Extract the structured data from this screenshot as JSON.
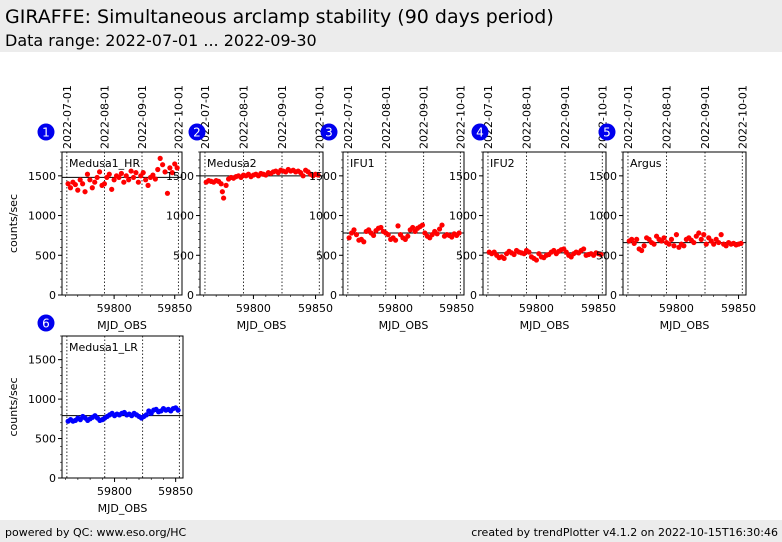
{
  "header": {
    "title": "GIRAFFE: Simultaneous arclamp stability (90 days period)",
    "subtitle": "Data range: 2022-07-01 ... 2022-09-30"
  },
  "footer": {
    "left": "powered by QC: www.eso.org/HC",
    "right": "created by trendPlotter v4.1.2 on 2022-10-15T16:30:46"
  },
  "colors": {
    "red": "#ff0000",
    "blue": "#0000ff",
    "badge": "#0000ee"
  },
  "chart_data": [
    {
      "type": "scatter",
      "badge": "1",
      "label": "Medusa1_HR",
      "color": "#ff0000",
      "xlabel": "MJD_OBS",
      "ylabel": "counts/sec",
      "xlim": [
        59757,
        59856
      ],
      "ylim": [
        0,
        1800
      ],
      "yticks": [
        0,
        500,
        1000,
        1500
      ],
      "xticks": [
        59800,
        59850
      ],
      "date_ticks": [
        {
          "label": "2022-07-01",
          "mjd": 59761
        },
        {
          "label": "2022-08-01",
          "mjd": 59792
        },
        {
          "label": "2022-09-01",
          "mjd": 59823
        },
        {
          "label": "2022-10-01",
          "mjd": 59853
        }
      ],
      "reference": 1480,
      "x": [
        59762,
        59764,
        59766,
        59768,
        59770,
        59772,
        59774,
        59776,
        59778,
        59780,
        59782,
        59784,
        59786,
        59788,
        59790,
        59792,
        59794,
        59796,
        59798,
        59800,
        59802,
        59804,
        59806,
        59808,
        59810,
        59812,
        59814,
        59816,
        59818,
        59820,
        59822,
        59824,
        59826,
        59828,
        59830,
        59832,
        59834,
        59836,
        59838,
        59840,
        59842,
        59844,
        59846,
        59848,
        59850,
        59852
      ],
      "y": [
        1400,
        1350,
        1420,
        1390,
        1320,
        1450,
        1400,
        1300,
        1520,
        1450,
        1350,
        1420,
        1480,
        1550,
        1380,
        1400,
        1480,
        1520,
        1330,
        1450,
        1500,
        1480,
        1530,
        1420,
        1500,
        1450,
        1560,
        1480,
        1540,
        1420,
        1500,
        1540,
        1450,
        1380,
        1480,
        1510,
        1460,
        1580,
        1720,
        1640,
        1550,
        1280,
        1600,
        1540,
        1650,
        1600
      ]
    },
    {
      "type": "scatter",
      "badge": "2",
      "label": "Medusa2",
      "color": "#ff0000",
      "xlabel": "MJD_OBS",
      "ylabel": "",
      "xlim": [
        59757,
        59856
      ],
      "ylim": [
        0,
        1800
      ],
      "yticks": [
        0,
        500,
        1000,
        1500
      ],
      "xticks": [
        59800,
        59850
      ],
      "date_ticks": [
        {
          "label": "2022-07-01",
          "mjd": 59761
        },
        {
          "label": "2022-08-01",
          "mjd": 59792
        },
        {
          "label": "2022-09-01",
          "mjd": 59823
        },
        {
          "label": "2022-10-01",
          "mjd": 59853
        }
      ],
      "reference": 1500,
      "x": [
        59762,
        59764,
        59766,
        59768,
        59770,
        59772,
        59774,
        59775,
        59776,
        59778,
        59780,
        59782,
        59784,
        59786,
        59788,
        59790,
        59792,
        59794,
        59796,
        59798,
        59800,
        59802,
        59804,
        59806,
        59808,
        59810,
        59812,
        59814,
        59816,
        59818,
        59820,
        59822,
        59824,
        59826,
        59828,
        59830,
        59832,
        59834,
        59836,
        59838,
        59840,
        59842,
        59844,
        59846,
        59848,
        59850,
        59852
      ],
      "y": [
        1420,
        1440,
        1430,
        1420,
        1440,
        1430,
        1400,
        1300,
        1220,
        1380,
        1460,
        1480,
        1470,
        1490,
        1500,
        1480,
        1510,
        1500,
        1520,
        1490,
        1510,
        1520,
        1500,
        1530,
        1520,
        1510,
        1540,
        1530,
        1550,
        1560,
        1540,
        1570,
        1560,
        1550,
        1580,
        1560,
        1570,
        1550,
        1560,
        1540,
        1500,
        1570,
        1550,
        1520,
        1500,
        1520,
        1510
      ]
    },
    {
      "type": "scatter",
      "badge": "3",
      "label": "IFU1",
      "color": "#ff0000",
      "xlabel": "MJD_OBS",
      "ylabel": "",
      "xlim": [
        59757,
        59856
      ],
      "ylim": [
        0,
        1800
      ],
      "yticks": [
        0,
        500,
        1000,
        1500
      ],
      "xticks": [
        59800,
        59850
      ],
      "date_ticks": [
        {
          "label": "2022-07-01",
          "mjd": 59761
        },
        {
          "label": "2022-08-01",
          "mjd": 59792
        },
        {
          "label": "2022-09-01",
          "mjd": 59823
        },
        {
          "label": "2022-10-01",
          "mjd": 59853
        }
      ],
      "reference": 780,
      "x": [
        59762,
        59764,
        59766,
        59768,
        59770,
        59772,
        59774,
        59776,
        59778,
        59780,
        59782,
        59784,
        59786,
        59788,
        59790,
        59792,
        59794,
        59796,
        59798,
        59800,
        59802,
        59804,
        59806,
        59808,
        59810,
        59812,
        59814,
        59816,
        59818,
        59820,
        59822,
        59824,
        59826,
        59828,
        59830,
        59832,
        59834,
        59836,
        59838,
        59840,
        59842,
        59844,
        59846,
        59848,
        59850,
        59852
      ],
      "y": [
        720,
        780,
        820,
        760,
        690,
        700,
        670,
        800,
        820,
        780,
        750,
        810,
        840,
        850,
        800,
        780,
        760,
        700,
        720,
        690,
        870,
        760,
        720,
        700,
        740,
        820,
        850,
        800,
        840,
        860,
        880,
        780,
        740,
        720,
        760,
        800,
        770,
        830,
        880,
        740,
        760,
        750,
        730,
        770,
        750,
        780
      ]
    },
    {
      "type": "scatter",
      "badge": "4",
      "label": "IFU2",
      "color": "#ff0000",
      "xlabel": "MJD_OBS",
      "ylabel": "",
      "xlim": [
        59757,
        59856
      ],
      "ylim": [
        0,
        1800
      ],
      "yticks": [
        0,
        500,
        1000,
        1500
      ],
      "xticks": [
        59800,
        59850
      ],
      "date_ticks": [
        {
          "label": "2022-07-01",
          "mjd": 59761
        },
        {
          "label": "2022-08-01",
          "mjd": 59792
        },
        {
          "label": "2022-09-01",
          "mjd": 59823
        },
        {
          "label": "2022-10-01",
          "mjd": 59853
        }
      ],
      "reference": 530,
      "x": [
        59762,
        59764,
        59766,
        59768,
        59770,
        59772,
        59774,
        59776,
        59778,
        59780,
        59782,
        59784,
        59786,
        59788,
        59790,
        59792,
        59794,
        59796,
        59798,
        59800,
        59802,
        59804,
        59806,
        59808,
        59810,
        59812,
        59814,
        59816,
        59818,
        59820,
        59822,
        59824,
        59826,
        59828,
        59830,
        59832,
        59834,
        59836,
        59838,
        59840,
        59842,
        59844,
        59846,
        59848,
        59850,
        59852
      ],
      "y": [
        540,
        520,
        540,
        500,
        470,
        480,
        460,
        520,
        550,
        530,
        510,
        560,
        540,
        530,
        520,
        560,
        540,
        480,
        460,
        440,
        520,
        480,
        470,
        500,
        510,
        540,
        560,
        520,
        550,
        570,
        580,
        540,
        500,
        480,
        520,
        540,
        530,
        560,
        580,
        500,
        510,
        520,
        500,
        530,
        520,
        510
      ]
    },
    {
      "type": "scatter",
      "badge": "5",
      "label": "Argus",
      "color": "#ff0000",
      "xlabel": "MJD_OBS",
      "ylabel": "",
      "xlim": [
        59757,
        59856
      ],
      "ylim": [
        0,
        1800
      ],
      "yticks": [
        0,
        500,
        1000,
        1500
      ],
      "xticks": [
        59800,
        59850
      ],
      "date_ticks": [
        {
          "label": "2022-07-01",
          "mjd": 59761
        },
        {
          "label": "2022-08-01",
          "mjd": 59792
        },
        {
          "label": "2022-09-01",
          "mjd": 59823
        },
        {
          "label": "2022-10-01",
          "mjd": 59853
        }
      ],
      "reference": 660,
      "x": [
        59762,
        59764,
        59766,
        59768,
        59770,
        59772,
        59774,
        59776,
        59778,
        59780,
        59782,
        59784,
        59786,
        59788,
        59790,
        59792,
        59794,
        59796,
        59798,
        59800,
        59802,
        59804,
        59806,
        59808,
        59810,
        59812,
        59814,
        59816,
        59818,
        59820,
        59822,
        59824,
        59826,
        59828,
        59830,
        59832,
        59834,
        59836,
        59838,
        59840,
        59842,
        59844,
        59846,
        59848,
        59850,
        59852
      ],
      "y": [
        680,
        700,
        650,
        700,
        580,
        560,
        620,
        720,
        700,
        660,
        640,
        740,
        700,
        680,
        720,
        660,
        640,
        700,
        620,
        760,
        600,
        640,
        620,
        700,
        720,
        690,
        660,
        740,
        780,
        700,
        760,
        640,
        720,
        680,
        640,
        700,
        660,
        760,
        640,
        620,
        660,
        640,
        650,
        630,
        640,
        650
      ]
    },
    {
      "type": "scatter",
      "badge": "6",
      "label": "Medusa1_LR",
      "color": "#0000ff",
      "xlabel": "MJD_OBS",
      "ylabel": "counts/sec",
      "xlim": [
        59757,
        59856
      ],
      "ylim": [
        0,
        1800
      ],
      "yticks": [
        0,
        500,
        1000,
        1500
      ],
      "xticks": [
        59800,
        59850
      ],
      "date_ticks": [
        {
          "label": "2022-07-01",
          "mjd": 59761
        },
        {
          "label": "2022-08-01",
          "mjd": 59792
        },
        {
          "label": "2022-09-01",
          "mjd": 59823
        },
        {
          "label": "2022-10-01",
          "mjd": 59853
        }
      ],
      "reference": 790,
      "x": [
        59762,
        59764,
        59766,
        59768,
        59770,
        59772,
        59774,
        59776,
        59778,
        59780,
        59782,
        59784,
        59786,
        59788,
        59790,
        59792,
        59794,
        59796,
        59798,
        59800,
        59802,
        59804,
        59806,
        59808,
        59810,
        59812,
        59814,
        59816,
        59818,
        59820,
        59822,
        59824,
        59826,
        59828,
        59830,
        59832,
        59834,
        59836,
        59838,
        59840,
        59842,
        59844,
        59846,
        59848,
        59850,
        59852
      ],
      "y": [
        720,
        740,
        720,
        730,
        760,
        740,
        780,
        760,
        730,
        750,
        770,
        790,
        760,
        730,
        740,
        760,
        780,
        800,
        820,
        790,
        810,
        800,
        820,
        830,
        800,
        810,
        790,
        820,
        800,
        780,
        760,
        780,
        800,
        850,
        820,
        860,
        870,
        840,
        850,
        880,
        860,
        870,
        850,
        880,
        890,
        860
      ]
    }
  ]
}
